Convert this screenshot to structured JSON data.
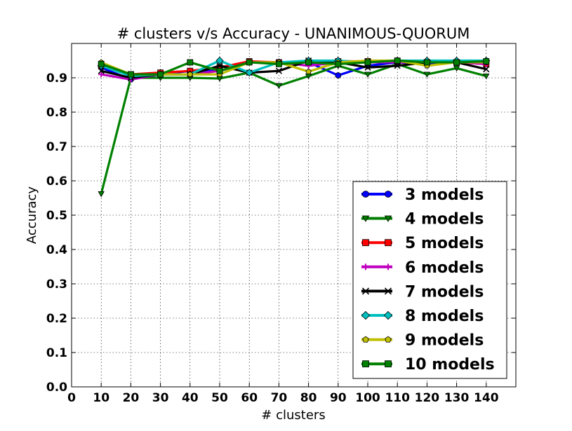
{
  "chart_data": {
    "type": "line",
    "title": "# clusters v/s Accuracy - UNANIMOUS-QUORUM",
    "xlabel": "# clusters",
    "ylabel": "Accuracy",
    "xlim": [
      0,
      150
    ],
    "ylim": [
      0.0,
      1.0
    ],
    "xticks": [
      "0",
      "10",
      "20",
      "30",
      "40",
      "50",
      "60",
      "70",
      "80",
      "90",
      "100",
      "110",
      "120",
      "130",
      "140"
    ],
    "yticks": [
      "0.0",
      "0.1",
      "0.2",
      "0.3",
      "0.4",
      "0.5",
      "0.6",
      "0.7",
      "0.8",
      "0.9"
    ],
    "grid": true,
    "legend_position": "lower-right",
    "x": [
      10,
      20,
      30,
      40,
      50,
      60,
      70,
      80,
      90,
      100,
      110,
      120,
      130,
      140
    ],
    "series": [
      {
        "name": "3 models",
        "color": "#0000ff",
        "marker": "circle",
        "values": [
          0.93,
          0.895,
          0.91,
          0.92,
          0.92,
          0.945,
          0.945,
          0.945,
          0.907,
          0.935,
          0.945,
          0.94,
          0.945,
          0.945
        ]
      },
      {
        "name": "4 models",
        "color": "#008000",
        "marker": "triangle-down",
        "values": [
          0.562,
          0.9,
          0.9,
          0.9,
          0.898,
          0.915,
          0.877,
          0.905,
          0.935,
          0.91,
          0.94,
          0.91,
          0.928,
          0.905
        ]
      },
      {
        "name": "5 models",
        "color": "#ff0000",
        "marker": "square",
        "values": [
          0.935,
          0.91,
          0.915,
          0.92,
          0.93,
          0.948,
          0.945,
          0.945,
          0.948,
          0.948,
          0.948,
          0.945,
          0.945,
          0.94
        ]
      },
      {
        "name": "6 models",
        "color": "#bf00bf",
        "marker": "plus",
        "values": [
          0.91,
          0.895,
          0.91,
          0.91,
          0.92,
          0.945,
          0.945,
          0.935,
          0.945,
          0.945,
          0.945,
          0.945,
          0.945,
          0.94
        ]
      },
      {
        "name": "7 models",
        "color": "#000000",
        "marker": "x",
        "values": [
          0.92,
          0.9,
          0.91,
          0.91,
          0.935,
          0.915,
          0.92,
          0.95,
          0.945,
          0.93,
          0.935,
          0.945,
          0.945,
          0.925
        ]
      },
      {
        "name": "8 models",
        "color": "#00bfbf",
        "marker": "diamond",
        "values": [
          0.935,
          0.905,
          0.91,
          0.91,
          0.95,
          0.915,
          0.945,
          0.95,
          0.95,
          0.945,
          0.95,
          0.95,
          0.95,
          0.95
        ]
      },
      {
        "name": "9 models",
        "color": "#bfbf00",
        "marker": "pentagon",
        "values": [
          0.945,
          0.91,
          0.91,
          0.91,
          0.91,
          0.945,
          0.945,
          0.918,
          0.945,
          0.95,
          0.95,
          0.935,
          0.945,
          0.945
        ]
      },
      {
        "name": "10 models",
        "color": "#008000",
        "marker": "square",
        "values": [
          0.94,
          0.91,
          0.91,
          0.945,
          0.92,
          0.945,
          0.94,
          0.945,
          0.94,
          0.945,
          0.95,
          0.945,
          0.945,
          0.948
        ]
      }
    ]
  }
}
